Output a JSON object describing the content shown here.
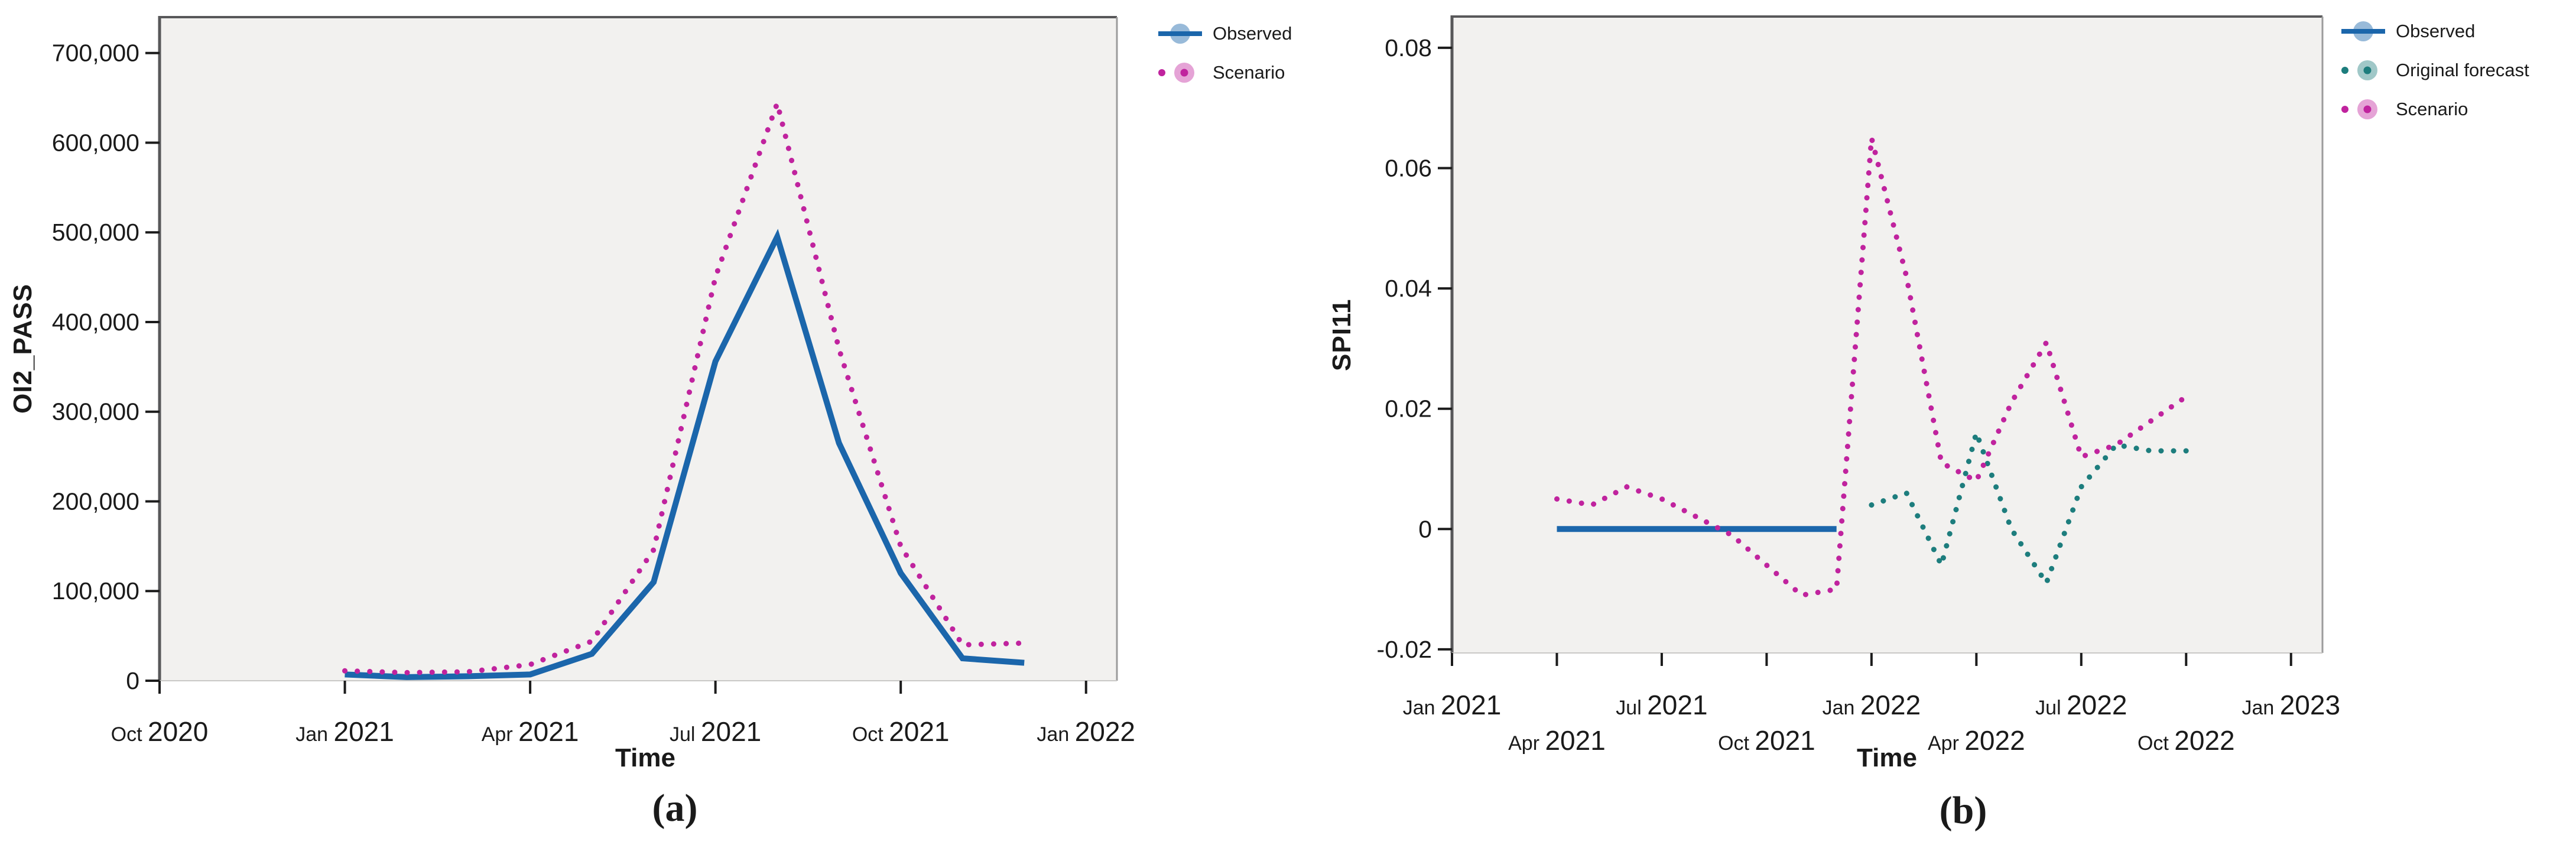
{
  "page": {
    "background": "#ffffff"
  },
  "chart_data": [
    {
      "id": "a",
      "type": "line",
      "caption": "(a)",
      "xlabel": "Time",
      "ylabel": "OI2_PASS",
      "x_base": "Jan 2021",
      "xlim_month_offset": [
        -3,
        12.5
      ],
      "ylim": [
        0,
        740000
      ],
      "grid": false,
      "plot_bg": "#f2f1ef",
      "legend_position": "outside-top-right",
      "x_ticks": [
        {
          "m": "Oct",
          "y": "2020",
          "i": -3,
          "row": 1
        },
        {
          "m": "Jan",
          "y": "2021",
          "i": 0,
          "row": 1
        },
        {
          "m": "Apr",
          "y": "2021",
          "i": 3,
          "row": 1
        },
        {
          "m": "Jul",
          "y": "2021",
          "i": 6,
          "row": 1
        },
        {
          "m": "Oct",
          "y": "2021",
          "i": 9,
          "row": 1
        },
        {
          "m": "Jan",
          "y": "2022",
          "i": 12,
          "row": 1
        }
      ],
      "y_ticks": [
        {
          "label": "0",
          "v": 0
        },
        {
          "label": "100,000",
          "v": 100000
        },
        {
          "label": "200,000",
          "v": 200000
        },
        {
          "label": "300,000",
          "v": 300000
        },
        {
          "label": "400,000",
          "v": 400000
        },
        {
          "label": "500,000",
          "v": 500000
        },
        {
          "label": "600,000",
          "v": 600000
        },
        {
          "label": "700,000",
          "v": 700000
        }
      ],
      "series": [
        {
          "name": "Observed",
          "color": "#1b66ab",
          "style": "solid",
          "marker": "line-ball",
          "start": "Jan 2021",
          "values": [
            7000,
            4000,
            5000,
            7000,
            30000,
            110000,
            356000,
            495000,
            265000,
            120000,
            25000,
            20000
          ]
        },
        {
          "name": "Scenario",
          "color": "#c0239e",
          "style": "dotted",
          "marker": "dot-ball",
          "start": "Jan 2021",
          "values": [
            11000,
            9000,
            10000,
            18000,
            44000,
            146000,
            450000,
            644000,
            370000,
            150000,
            40000,
            42000
          ]
        }
      ]
    },
    {
      "id": "b",
      "type": "line",
      "caption": "(b)",
      "xlabel": "Time",
      "ylabel": "SPI11",
      "x_base": "Jan 2021",
      "xlim_month_offset": [
        0,
        24.9
      ],
      "ylim": [
        -0.0206,
        0.0852
      ],
      "grid": false,
      "plot_bg": "#f2f1ef",
      "legend_position": "outside-top-right",
      "x_ticks": [
        {
          "m": "Jan",
          "y": "2021",
          "i": 0,
          "row": 1
        },
        {
          "m": "Apr",
          "y": "2021",
          "i": 3,
          "row": 2
        },
        {
          "m": "Jul",
          "y": "2021",
          "i": 6,
          "row": 1
        },
        {
          "m": "Oct",
          "y": "2021",
          "i": 9,
          "row": 2
        },
        {
          "m": "Jan",
          "y": "2022",
          "i": 12,
          "row": 1
        },
        {
          "m": "Apr",
          "y": "2022",
          "i": 15,
          "row": 2
        },
        {
          "m": "Jul",
          "y": "2022",
          "i": 18,
          "row": 1
        },
        {
          "m": "Oct",
          "y": "2022",
          "i": 21,
          "row": 2
        },
        {
          "m": "Jan",
          "y": "2023",
          "i": 24,
          "row": 1
        }
      ],
      "y_ticks": [
        {
          "label": "-0.02",
          "v": -0.02
        },
        {
          "label": "0",
          "v": 0
        },
        {
          "label": "0.02",
          "v": 0.02
        },
        {
          "label": "0.04",
          "v": 0.04
        },
        {
          "label": "0.06",
          "v": 0.06
        },
        {
          "label": "0.08",
          "v": 0.08
        }
      ],
      "series": [
        {
          "name": "Observed",
          "color": "#1b66ab",
          "style": "solid",
          "marker": "line-ball",
          "start": "Apr 2021",
          "values": [
            0,
            0,
            0,
            0,
            0,
            0,
            0,
            0,
            0
          ]
        },
        {
          "name": "Original forecast",
          "color": "#1d7d7d",
          "style": "dotted",
          "marker": "dot-ball",
          "start": "Jan 2022",
          "values": [
            0.004,
            0.006,
            -0.006,
            0.016,
            0.0,
            -0.009,
            0.007,
            0.014,
            0.013,
            0.013
          ]
        },
        {
          "name": "Scenario",
          "color": "#c0239e",
          "style": "dotted",
          "marker": "dot-ball",
          "start": "Apr 2021",
          "values": [
            0.005,
            0.004,
            0.007,
            0.005,
            0.002,
            -0.001,
            -0.006,
            -0.011,
            -0.01,
            0.065,
            0.042,
            0.011,
            0.008,
            0.021,
            0.031,
            0.012,
            0.014,
            0.018,
            0.022
          ]
        }
      ]
    }
  ]
}
